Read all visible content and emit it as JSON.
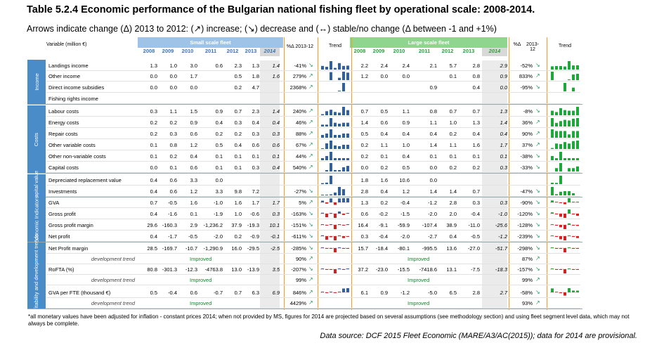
{
  "title": "Table 5.2.4 Economic performance of the Bulgarian national fishing fleet by operational scale: 2008-2014.",
  "subtitle": "Arrows indicate change (Δ) 2013 to 2012: (↗) increase; (↘) decrease and (↔) stable/no change (Δ between -1 and +1%)",
  "header": {
    "variable": "Variable (million €)",
    "small_fleet": "Small scale fleet",
    "large_fleet": "Large scale fleet",
    "pct_small": "%Δ 2013-12",
    "pct_large_a": "%Δ",
    "pct_large_b": "2013-12",
    "trend": "Trend",
    "years": [
      "2008",
      "2009",
      "2010",
      "2011",
      "2012",
      "2013",
      "2014"
    ]
  },
  "colors": {
    "small_header": "#9fc3e6",
    "large_header": "#8fd48f",
    "side_band": "#4a8cc8",
    "neg_bar": "#d32020",
    "pos_bar_small": "#2f5fa6",
    "pos_bar_large": "#1fa83a",
    "arrow": "#1e9a5a"
  },
  "sections": [
    {
      "name": "Income",
      "rows": [
        0,
        3
      ]
    },
    {
      "name": "Costs",
      "rows": [
        4,
        9
      ]
    },
    {
      "name": "Capital value",
      "rows": [
        10,
        11
      ]
    },
    {
      "name": "Economic Indicators",
      "rows": [
        12,
        15
      ]
    },
    {
      "name": "Profitability and development trends",
      "rows": [
        16,
        21
      ]
    }
  ],
  "rows": [
    {
      "label": "Landings income",
      "s": [
        "1.3",
        "1.0",
        "3.0",
        "0.6",
        "2.3",
        "1.3",
        "1.4"
      ],
      "sp": "-41%",
      "sa": "↘",
      "l": [
        "2.2",
        "2.4",
        "2.4",
        "2.1",
        "5.7",
        "2.8",
        "2.9"
      ],
      "lp": "-52%",
      "la": "↘",
      "ss": [
        1.3,
        1.0,
        3.0,
        0.6,
        2.3,
        1.3,
        1.4
      ],
      "ls": [
        2.2,
        2.4,
        2.4,
        2.1,
        5.7,
        2.8,
        2.9
      ]
    },
    {
      "label": "Other income",
      "s": [
        "0.0",
        "0.0",
        "1.7",
        "",
        "0.5",
        "1.8",
        "1.6"
      ],
      "sp": "279%",
      "sa": "↗",
      "l": [
        "1.2",
        "0.0",
        "0.0",
        "",
        "0.1",
        "0.8",
        "0.9"
      ],
      "lp": "833%",
      "la": "↗",
      "ss": [
        0,
        0,
        1.7,
        0,
        0.5,
        1.8,
        1.6
      ],
      "ls": [
        1.2,
        0,
        0,
        0,
        0.1,
        0.8,
        0.9
      ]
    },
    {
      "label": "Direct income subsidies",
      "s": [
        "0.0",
        "0.0",
        "0.0",
        "",
        "0.2",
        "4.7",
        ""
      ],
      "sp": "2368%",
      "sa": "↗",
      "l": [
        "",
        "",
        "",
        "0.9",
        "",
        "0.4",
        "0.0"
      ],
      "lp": "-95%",
      "la": "↘",
      "ss": [
        0,
        0,
        0,
        0,
        0.2,
        4.7,
        0
      ],
      "ls": [
        0,
        0,
        0,
        0.9,
        0,
        0.4,
        0
      ]
    },
    {
      "label": "Fishing rights income",
      "s": [
        "",
        "",
        "",
        "",
        "",
        "",
        ""
      ],
      "sp": "",
      "sa": "",
      "l": [
        "",
        "",
        "",
        "",
        "",
        "",
        ""
      ],
      "lp": "",
      "la": "",
      "ss": [],
      "ls": []
    },
    {
      "label": "Labour costs",
      "s": [
        "0.3",
        "1.1",
        "1.5",
        "0.9",
        "0.7",
        "2.3",
        "1.4"
      ],
      "sp": "240%",
      "sa": "↗",
      "l": [
        "0.7",
        "0.5",
        "1.1",
        "0.8",
        "0.7",
        "0.7",
        "1.3"
      ],
      "lp": "-8%",
      "la": "↘",
      "ss": [
        0.3,
        1.1,
        1.5,
        0.9,
        0.7,
        2.3,
        1.4
      ],
      "ls": [
        0.7,
        0.5,
        1.1,
        0.8,
        0.7,
        0.7,
        1.3
      ]
    },
    {
      "label": "Energy costs",
      "s": [
        "0.2",
        "0.2",
        "0.9",
        "0.4",
        "0.3",
        "0.4",
        "0.4"
      ],
      "sp": "46%",
      "sa": "↗",
      "l": [
        "1.4",
        "0.6",
        "0.9",
        "1.1",
        "1.0",
        "1.3",
        "1.4"
      ],
      "lp": "36%",
      "la": "↗",
      "ss": [
        0.2,
        0.2,
        0.9,
        0.4,
        0.3,
        0.4,
        0.4
      ],
      "ls": [
        1.4,
        0.6,
        0.9,
        1.1,
        1.0,
        1.3,
        1.4
      ]
    },
    {
      "label": "Repair costs",
      "s": [
        "0.2",
        "0.3",
        "0.6",
        "0.2",
        "0.2",
        "0.3",
        "0.3"
      ],
      "sp": "88%",
      "sa": "↗",
      "l": [
        "0.5",
        "0.4",
        "0.4",
        "0.4",
        "0.2",
        "0.4",
        "0.4"
      ],
      "lp": "90%",
      "la": "↗",
      "ss": [
        0.2,
        0.3,
        0.6,
        0.2,
        0.2,
        0.3,
        0.3
      ],
      "ls": [
        0.5,
        0.4,
        0.4,
        0.4,
        0.2,
        0.4,
        0.4
      ]
    },
    {
      "label": "Other variable costs",
      "s": [
        "0.1",
        "0.8",
        "1.2",
        "0.5",
        "0.4",
        "0.6",
        "0.6"
      ],
      "sp": "67%",
      "sa": "↗",
      "l": [
        "0.2",
        "1.1",
        "1.0",
        "1.4",
        "1.1",
        "1.6",
        "1.7"
      ],
      "lp": "37%",
      "la": "↗",
      "ss": [
        0.1,
        0.8,
        1.2,
        0.5,
        0.4,
        0.6,
        0.6
      ],
      "ls": [
        0.2,
        1.1,
        1.0,
        1.4,
        1.1,
        1.6,
        1.7
      ]
    },
    {
      "label": "Other non-variable costs",
      "s": [
        "0.1",
        "0.2",
        "0.4",
        "0.1",
        "0.1",
        "0.1",
        "0.1"
      ],
      "sp": "44%",
      "sa": "↗",
      "l": [
        "0.2",
        "0.1",
        "0.4",
        "0.1",
        "0.1",
        "0.1",
        "0.1"
      ],
      "lp": "-38%",
      "la": "↘",
      "ss": [
        0.1,
        0.2,
        0.4,
        0.1,
        0.1,
        0.1,
        0.1
      ],
      "ls": [
        0.2,
        0.1,
        0.4,
        0.1,
        0.1,
        0.1,
        0.1
      ]
    },
    {
      "label": "Capital costs",
      "s": [
        "0.0",
        "0.1",
        "0.6",
        "0.1",
        "0.1",
        "0.3",
        "0.4"
      ],
      "sp": "540%",
      "sa": "↗",
      "l": [
        "0.0",
        "0.2",
        "0.5",
        "0.0",
        "0.2",
        "0.2",
        "0.3"
      ],
      "lp": "-33%",
      "la": "↘",
      "ss": [
        0,
        0.1,
        0.6,
        0.1,
        0.1,
        0.3,
        0.4
      ],
      "ls": [
        0,
        0.2,
        0.5,
        0,
        0.2,
        0.2,
        0.3
      ]
    },
    {
      "label": "Depreciated replacement value",
      "s": [
        "0.4",
        "0.6",
        "3.3",
        "0.0",
        "",
        "",
        ""
      ],
      "sp": "",
      "sa": "",
      "l": [
        "1.8",
        "1.6",
        "10.6",
        "0.0",
        "",
        "",
        ""
      ],
      "lp": "",
      "la": "",
      "ss": [
        0.4,
        0.6,
        3.3,
        0
      ],
      "ls": [
        1.8,
        1.6,
        10.6,
        0
      ]
    },
    {
      "label": "Investments",
      "s": [
        "0.4",
        "0.6",
        "1.2",
        "3.3",
        "9.8",
        "7.2",
        ""
      ],
      "sp": "-27%",
      "sa": "↘",
      "l": [
        "2.8",
        "0.4",
        "1.2",
        "1.4",
        "1.4",
        "0.7",
        ""
      ],
      "lp": "-47%",
      "la": "↘",
      "ss": [
        0.4,
        0.6,
        1.2,
        3.3,
        9.8,
        7.2
      ],
      "ls": [
        2.8,
        0.4,
        1.2,
        1.4,
        1.4,
        0.7
      ]
    },
    {
      "label": "GVA",
      "s": [
        "0.7",
        "-0.5",
        "1.6",
        "-1.0",
        "1.6",
        "1.7",
        "1.7"
      ],
      "sp": "5%",
      "sa": "↗",
      "l": [
        "1.3",
        "0.2",
        "-0.4",
        "-1.2",
        "2.8",
        "0.3",
        "0.3"
      ],
      "lp": "-90%",
      "la": "↘",
      "ss": [
        0.7,
        -0.5,
        1.6,
        -1.0,
        1.6,
        1.7,
        1.7
      ],
      "ls": [
        1.3,
        0.2,
        -0.4,
        -1.2,
        2.8,
        0.3,
        0.3
      ]
    },
    {
      "label": "Gross profit",
      "s": [
        "0.4",
        "-1.6",
        "0.1",
        "-1.9",
        "1.0",
        "-0.6",
        "0.3"
      ],
      "sp": "-163%",
      "sa": "↘",
      "l": [
        "0.6",
        "-0.2",
        "-1.5",
        "-2.0",
        "2.0",
        "-0.4",
        "-1.0"
      ],
      "lp": "-120%",
      "la": "↘",
      "ss": [
        0.4,
        -1.6,
        0.1,
        -1.9,
        1.0,
        -0.6,
        0.3
      ],
      "ls": [
        0.6,
        -0.2,
        -1.5,
        -2.0,
        2.0,
        -0.4,
        -1.0
      ]
    },
    {
      "label": "Gross profit margin",
      "s": [
        "29.6",
        "-160.3",
        "2.9",
        "-1,236.2",
        "37.9",
        "-19.3",
        "10.1"
      ],
      "sp": "-151%",
      "sa": "↘",
      "l": [
        "16.4",
        "-9.1",
        "-59.9",
        "-107.4",
        "38.9",
        "-11.0",
        "-25.6"
      ],
      "lp": "-128%",
      "la": "↘",
      "ss": [
        29.6,
        -160.3,
        2.9,
        -1236.2,
        37.9,
        -19.3,
        10.1
      ],
      "ls": [
        16.4,
        -9.1,
        -59.9,
        -107.4,
        38.9,
        -11.0,
        -25.6
      ]
    },
    {
      "label": "Net profit",
      "s": [
        "0.4",
        "-1.7",
        "-0.5",
        "-2.0",
        "0.2",
        "-0.9",
        "-0.1"
      ],
      "sp": "-611%",
      "sa": "↘",
      "l": [
        "0.3",
        "-0.4",
        "-2.0",
        "-2.7",
        "0.4",
        "-0.5",
        "-1.2"
      ],
      "lp": "-239%",
      "la": "↘",
      "ss": [
        0.4,
        -1.7,
        -0.5,
        -2.0,
        0.2,
        -0.9,
        -0.1
      ],
      "ls": [
        0.3,
        -0.4,
        -2.0,
        -2.7,
        0.4,
        -0.5,
        -1.2
      ]
    },
    {
      "label": "Net Profit margin",
      "s": [
        "28.5",
        "-169.7",
        "-10.7",
        "-1,290.9",
        "16.0",
        "-29.5",
        "-2.5"
      ],
      "sp": "-285%",
      "sa": "↘",
      "l": [
        "15.7",
        "-18.4",
        "-80.1",
        "-995.5",
        "13.6",
        "-27.0",
        "-51.7"
      ],
      "lp": "-298%",
      "la": "↘",
      "ss": [
        28.5,
        -169.7,
        -10.7,
        -1290.9,
        16.0,
        -29.5,
        -2.5
      ],
      "ls": [
        15.7,
        -18.4,
        -80.1,
        -995.5,
        13.6,
        -27.0,
        -51.7
      ]
    },
    {
      "label": "development trend",
      "dev": true,
      "st": "Improved",
      "sp": "90%",
      "sa": "↗",
      "lt": "Improved",
      "lp": "87%",
      "la": "↗"
    },
    {
      "label": "RoFTA (%)",
      "s": [
        "80.8",
        "-301.3",
        "-12.3",
        "-4763.8",
        "13.0",
        "-13.9",
        "3.5"
      ],
      "sp": "-207%",
      "sa": "↘",
      "l": [
        "37.2",
        "-23.0",
        "-15.5",
        "-7418.6",
        "13.1",
        "-7.5",
        "-18.3"
      ],
      "lp": "-157%",
      "la": "↘",
      "ss": [
        80.8,
        -301.3,
        -12.3,
        -4763.8,
        13.0,
        -13.9,
        3.5
      ],
      "ls": [
        37.2,
        -23.0,
        -15.5,
        -7418.6,
        13.1,
        -7.5,
        -18.3
      ]
    },
    {
      "label": "development trend",
      "dev": true,
      "st": "Improved",
      "sp": "99%",
      "sa": "↗",
      "lt": "Improved",
      "lp": "99%",
      "la": "↗"
    },
    {
      "label": "GVA per FTE (thousand €)",
      "s": [
        "0.5",
        "-0.4",
        "0.6",
        "-0.7",
        "0.7",
        "6.3",
        "6.9"
      ],
      "sp": "846%",
      "sa": "↗",
      "l": [
        "6.1",
        "0.9",
        "-1.2",
        "-5.0",
        "6.5",
        "2.8",
        "2.7"
      ],
      "lp": "-58%",
      "la": "↘",
      "ss": [
        0.5,
        -0.4,
        0.6,
        -0.7,
        0.7,
        6.3,
        6.9
      ],
      "ls": [
        6.1,
        0.9,
        -1.2,
        -5.0,
        6.5,
        2.8,
        2.7
      ]
    },
    {
      "label": "development trend",
      "dev": true,
      "st": "Improved",
      "sp": "4429%",
      "sa": "↗",
      "lt": "Improved",
      "lp": "93%",
      "la": "↗"
    }
  ],
  "footnote": "*all monetary values have been adjusted for inflation - constant prices 2014; when not provided by MS, figures for 2014 are projected based on several assumptions (see methodology section) and using fleet segment level data, which may not always be complete.",
  "source": "Data source: DCF 2015 Fleet Economic (MARE/A3/AC(2015)); data for 2014 are provisional."
}
